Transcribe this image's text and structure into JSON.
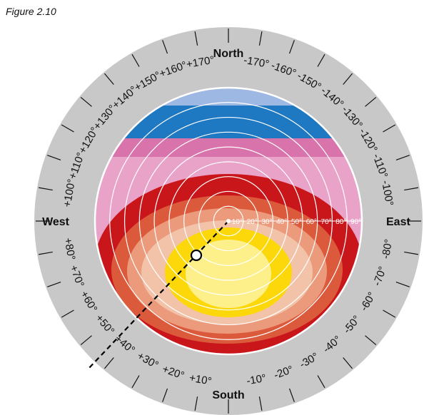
{
  "figure_label": "Figure 2.10",
  "directions": {
    "north": "North",
    "south": "South",
    "east": "East",
    "west": "West"
  },
  "ring_labels": [
    "+10°",
    "+20°",
    "+30°",
    "+40°",
    "+50°",
    "+60°",
    "+70°",
    "+80°",
    "+100°",
    "+110°",
    "+120°",
    "+130°",
    "+140°",
    "+150°",
    "+160°",
    "+170°",
    "-170°",
    "-160°",
    "-150°",
    "-140°",
    "-130°",
    "-120°",
    "-110°",
    "-100°",
    "-80°",
    "-70°",
    "-60°",
    "-50°",
    "-40°",
    "-30°",
    "-20°",
    "-10°"
  ],
  "radial_labels": [
    "10°",
    "20°",
    "30°",
    "40°",
    "50°",
    "60°",
    "70°",
    "80°",
    "90°"
  ],
  "colors": {
    "ring": "#c8c8c8",
    "light_blue": "#9db8e2",
    "blue": "#1e78c2",
    "magenta": "#d873ab",
    "pink": "#e9a3c9",
    "red": "#c8161b",
    "orange_red": "#dc5a3c",
    "salmon": "#ec9a7c",
    "peach": "#f2c3a8",
    "yellow": "#fcd80a",
    "pale_yellow": "#fdf08a"
  }
}
